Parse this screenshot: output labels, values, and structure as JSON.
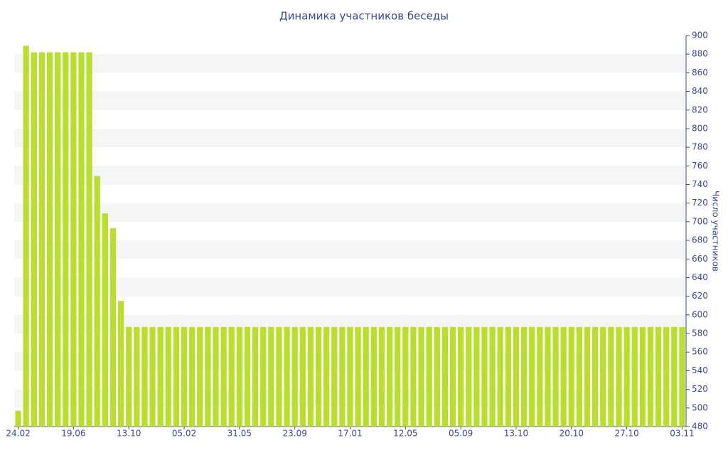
{
  "chart_data": {
    "type": "bar",
    "title": "Динамика участников беседы",
    "y_axis_label": "Число участников",
    "categories": [
      "24.02",
      null,
      null,
      null,
      null,
      null,
      null,
      "19.06",
      null,
      null,
      null,
      null,
      null,
      null,
      "13.10",
      null,
      null,
      null,
      null,
      null,
      null,
      "05.02",
      null,
      null,
      null,
      null,
      null,
      null,
      "31.05",
      null,
      null,
      null,
      null,
      null,
      null,
      "23.09",
      null,
      null,
      null,
      null,
      null,
      null,
      "17.01",
      null,
      null,
      null,
      null,
      null,
      null,
      "12.05",
      null,
      null,
      null,
      null,
      null,
      null,
      "05.09",
      null,
      null,
      null,
      null,
      null,
      null,
      "13.10",
      null,
      null,
      null,
      null,
      null,
      null,
      "20.10",
      null,
      null,
      null,
      null,
      null,
      null,
      "27.10",
      null,
      null,
      null,
      null,
      null,
      null,
      "03.11"
    ],
    "values": [
      497,
      889,
      882,
      882,
      882,
      882,
      882,
      882,
      882,
      882,
      749,
      709,
      693,
      615,
      587,
      587,
      587,
      587,
      587,
      587,
      587,
      587,
      587,
      587,
      587,
      587,
      587,
      587,
      587,
      587,
      587,
      587,
      587,
      587,
      587,
      587,
      587,
      587,
      587,
      587,
      587,
      587,
      587,
      587,
      587,
      587,
      587,
      587,
      587,
      587,
      587,
      587,
      587,
      587,
      587,
      587,
      587,
      587,
      587,
      587,
      587,
      587,
      587,
      587,
      587,
      587,
      587,
      587,
      587,
      587,
      587,
      587,
      587,
      587,
      587,
      587,
      587,
      587,
      587,
      587,
      587,
      587,
      587,
      587,
      587
    ],
    "color": "#bade2e",
    "ylim": [
      480,
      900
    ],
    "yticks": [
      480,
      500,
      520,
      540,
      560,
      580,
      600,
      620,
      640,
      660,
      680,
      700,
      720,
      740,
      760,
      780,
      800,
      820,
      840,
      860,
      880,
      900
    ],
    "y_axis_side": "right",
    "grid": true
  }
}
